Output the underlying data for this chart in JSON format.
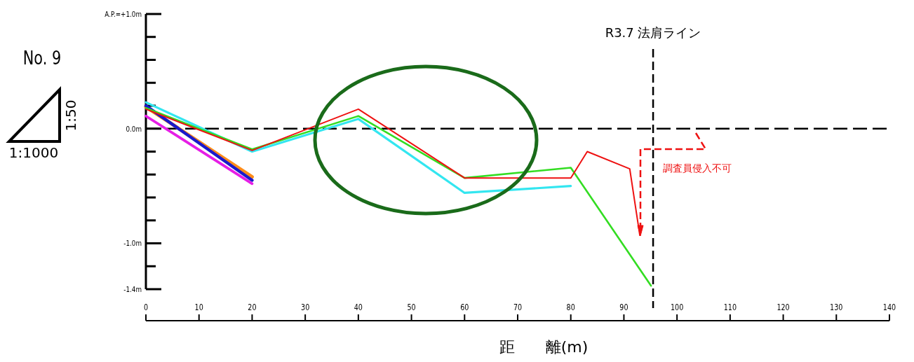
{
  "chart_data": {
    "type": "line",
    "title": "No. 9",
    "xlabel": "距　　離(m)",
    "annotations": [
      "1:1000",
      "1:50",
      "調査員侵入不可"
    ],
    "xlim": [
      0,
      140
    ],
    "xticks": [
      0,
      10,
      20,
      30,
      40,
      50,
      60,
      70,
      80,
      90,
      100,
      110,
      120,
      130,
      140
    ],
    "ylim": [
      -1.4,
      1.0
    ],
    "yticks": [
      {
        "value": 1.0,
        "label": "A.P.=+1.0m"
      },
      {
        "value": 0.8,
        "label": null
      },
      {
        "value": 0.6,
        "label": null
      },
      {
        "value": 0.4,
        "label": null
      },
      {
        "value": 0.2,
        "label": null
      },
      {
        "value": 0,
        "label": "0.0m"
      },
      {
        "value": -0.2,
        "label": null
      },
      {
        "value": -0.4,
        "label": null
      },
      {
        "value": -0.6,
        "label": null
      },
      {
        "value": -0.8,
        "label": null
      },
      {
        "value": -1.0,
        "label": "-1.0m"
      },
      {
        "value": -1.2,
        "label": null
      },
      {
        "value": -1.4,
        "label": "-1.4m"
      }
    ],
    "ref_lines": [
      {
        "axis": "y",
        "value": 0,
        "color": "#000000",
        "line_style": "dashed"
      },
      {
        "axis": "x",
        "value": 95.5,
        "label": "R3.7 法肩ライン",
        "color": "#000000",
        "line_style": "dashed"
      }
    ],
    "series": [
      {
        "color": "#ff8c1a",
        "x": [
          0,
          20
        ],
        "values": [
          0.19,
          -0.42
        ]
      },
      {
        "color": "#1a1acc",
        "x": [
          0,
          20
        ],
        "values": [
          0.2,
          -0.45
        ]
      },
      {
        "color": "#e61ee6",
        "x": [
          0,
          20
        ],
        "values": [
          0.11,
          -0.48
        ]
      },
      {
        "color": "#33e6f0",
        "x": [
          0,
          20,
          40,
          60,
          80
        ],
        "values": [
          0.23,
          -0.2,
          0.085,
          -0.56,
          -0.5
        ]
      },
      {
        "color": "#33dd22",
        "x": [
          0,
          20,
          40,
          60,
          80,
          95.1
        ],
        "values": [
          0.18,
          -0.18,
          0.11,
          -0.43,
          -0.34,
          -1.37
        ]
      },
      {
        "color": "#ee1111",
        "x": [
          0,
          20,
          40,
          60,
          80,
          83.1,
          91.1,
          93
        ],
        "values": [
          0.17,
          -0.19,
          0.17,
          -0.43,
          -0.43,
          -0.2,
          -0.35,
          -0.93
        ]
      }
    ]
  }
}
